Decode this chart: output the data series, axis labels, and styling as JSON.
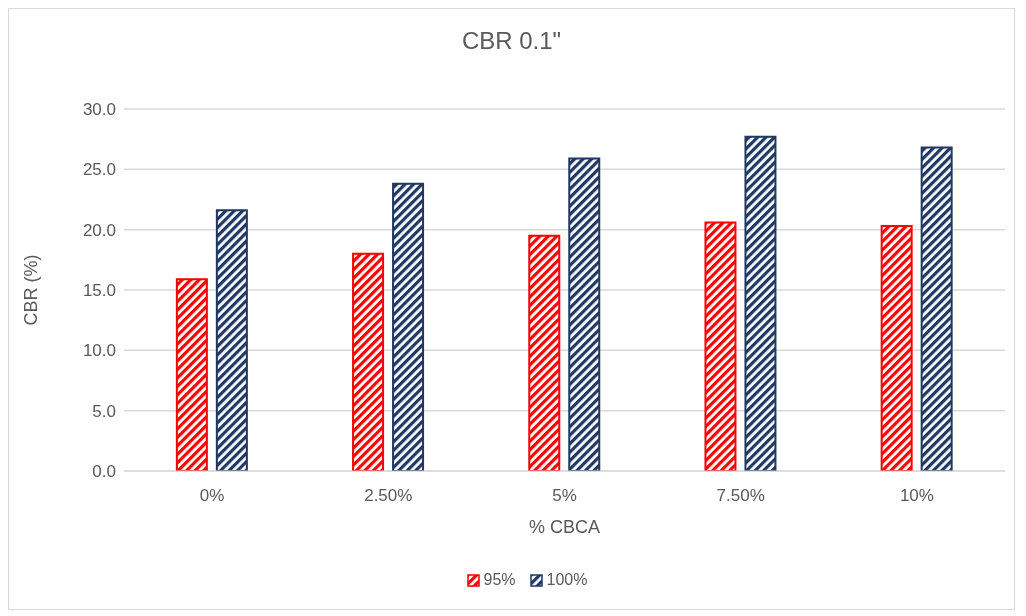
{
  "chart_data": {
    "type": "bar",
    "title": "CBR 0.1\"",
    "xlabel": "% CBCA",
    "ylabel": "CBR (%)",
    "categories": [
      "0%",
      "2.50%",
      "5%",
      "7.50%",
      "10%"
    ],
    "series": [
      {
        "name": "95%",
        "color": "#ff0000",
        "values": [
          15.9,
          18.0,
          19.5,
          20.6,
          20.3
        ]
      },
      {
        "name": "100%",
        "color": "#1f3864",
        "values": [
          21.6,
          23.8,
          25.9,
          27.7,
          26.8
        ]
      }
    ],
    "ylim": [
      0,
      30
    ],
    "yticks": [
      {
        "value": 0,
        "label": "0.0"
      },
      {
        "value": 5,
        "label": "5.0"
      },
      {
        "value": 10,
        "label": "10.0"
      },
      {
        "value": 15,
        "label": "15.0"
      },
      {
        "value": 20,
        "label": "20.0"
      },
      {
        "value": 25,
        "label": "25.0"
      },
      {
        "value": 30,
        "label": "30.0"
      }
    ],
    "grid": "y",
    "legend": "bottom"
  }
}
